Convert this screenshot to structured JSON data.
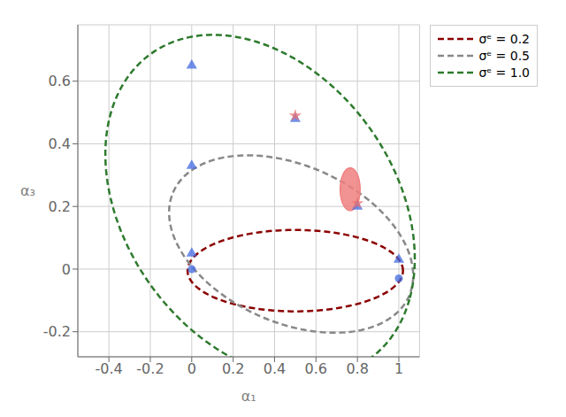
{
  "chart_data": {
    "type": "scatter",
    "xlabel": "α₁",
    "ylabel": "α₃",
    "xlim": [
      -0.55,
      1.1
    ],
    "ylim": [
      -0.28,
      0.78
    ],
    "xticks": [
      -0.4,
      -0.2,
      0.0,
      0.2,
      0.4,
      0.6,
      0.8,
      1.0
    ],
    "yticks": [
      -0.2,
      0.0,
      0.2,
      0.4,
      0.6
    ],
    "grid": true,
    "legend": "upper right",
    "series": [
      {
        "name": "σᵉ = 0.2",
        "type": "ellipse",
        "color": "#8B0000",
        "line_style": "dashed",
        "cx": 0.5,
        "cy": -0.005,
        "rx": 0.52,
        "ry": 0.13,
        "angle": 0.0
      },
      {
        "name": "σᵉ = 0.5",
        "type": "ellipse",
        "color": "#888888",
        "line_style": "dashed",
        "cx": 0.48,
        "cy": 0.08,
        "rx": 0.6,
        "ry": 0.26,
        "angle": -12.0
      },
      {
        "name": "σᵉ = 1.0",
        "type": "ellipse",
        "color": "#2d7a2d",
        "line_style": "dashed",
        "cx": 0.33,
        "cy": 0.2,
        "rx": 0.78,
        "ry": 0.5,
        "angle": -22.0
      },
      {
        "type": "filled_ellipse",
        "color": "#f08080",
        "cx": 0.765,
        "cy": 0.255,
        "rx": 0.048,
        "ry": 0.068,
        "angle": 0.0
      },
      {
        "type": "scatter",
        "marker": "triangle",
        "color": "#4169e1",
        "x": [
          0.0,
          0.0,
          0.0,
          0.5,
          0.8,
          1.0
        ],
        "values": [
          0.05,
          0.33,
          0.65,
          0.48,
          0.2,
          0.03
        ]
      },
      {
        "type": "scatter",
        "marker": "circle",
        "color": "#4169e1",
        "x": [
          0.0,
          1.0
        ],
        "values": [
          0.0,
          -0.03
        ]
      },
      {
        "type": "scatter",
        "marker": "star",
        "color": "#e87070",
        "x": [
          0.5,
          0.8
        ],
        "values": [
          0.49,
          0.21
        ]
      }
    ]
  }
}
